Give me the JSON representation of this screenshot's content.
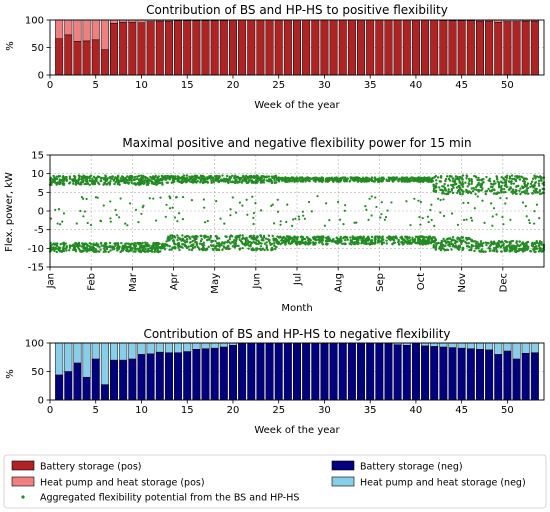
{
  "chart_data": [
    {
      "type": "bar",
      "stacked": true,
      "title": "Contribution of BS and HP-HS to positive flexibility",
      "xlabel": "Week of the year",
      "ylabel": "%",
      "xlim": [
        0,
        54
      ],
      "ylim": [
        0,
        100
      ],
      "xticks": [
        "0",
        "5",
        "10",
        "15",
        "20",
        "25",
        "30",
        "35",
        "40",
        "45",
        "50"
      ],
      "yticks": [
        "0",
        "50",
        "100"
      ],
      "grid": true,
      "categories": [
        1,
        2,
        3,
        4,
        5,
        6,
        7,
        8,
        9,
        10,
        11,
        12,
        13,
        14,
        15,
        16,
        17,
        18,
        19,
        20,
        21,
        22,
        23,
        24,
        25,
        26,
        27,
        28,
        29,
        30,
        31,
        32,
        33,
        34,
        35,
        36,
        37,
        38,
        39,
        40,
        41,
        42,
        43,
        44,
        45,
        46,
        47,
        48,
        49,
        50,
        51,
        52,
        53
      ],
      "series": [
        {
          "name": "Battery storage (pos)",
          "color": "#b22222",
          "values": [
            66,
            73,
            61,
            62,
            64,
            46,
            94,
            96,
            96,
            95,
            97,
            98,
            98,
            99,
            99,
            99,
            99,
            99,
            99,
            100,
            100,
            100,
            100,
            100,
            100,
            100,
            100,
            100,
            100,
            100,
            100,
            100,
            100,
            100,
            100,
            100,
            100,
            100,
            100,
            100,
            100,
            100,
            99,
            99,
            99,
            99,
            98,
            98,
            96,
            97,
            97,
            98,
            98
          ]
        },
        {
          "name": "Heat pump and heat storage (pos)",
          "color": "#f08080",
          "values": [
            34,
            27,
            39,
            38,
            36,
            54,
            6,
            4,
            4,
            5,
            3,
            2,
            2,
            1,
            1,
            1,
            1,
            1,
            1,
            0,
            0,
            0,
            0,
            0,
            0,
            0,
            0,
            0,
            0,
            0,
            0,
            0,
            0,
            0,
            0,
            0,
            0,
            0,
            0,
            0,
            0,
            0,
            1,
            1,
            1,
            1,
            2,
            2,
            4,
            3,
            3,
            2,
            2
          ]
        }
      ]
    },
    {
      "type": "scatter",
      "title": "Maximal positive and negative flexibility power for 15 min",
      "xlabel": "Month",
      "ylabel": "Flex. power, kW",
      "ylim": [
        -15,
        15
      ],
      "yticks": [
        "15",
        "10",
        "5",
        "0",
        "-5",
        "-10",
        "-15"
      ],
      "xticks": [
        "Jan",
        "Feb",
        "Mar",
        "Apr",
        "May",
        "Jun",
        "Jul",
        "Aug",
        "Sep",
        "Oct",
        "Nov",
        "Dec"
      ],
      "grid": true,
      "series": [
        {
          "name": "Aggregated flexibility potential from the BS and HP-HS",
          "color": "#228b22",
          "bands": [
            {
              "months": [
                0,
                2.8
              ],
              "pos": [
                7,
                9.5
              ],
              "neg": [
                -11,
                -8.5
              ]
            },
            {
              "months": [
                2.8,
                5.5
              ],
              "pos": [
                7.5,
                9.5
              ],
              "neg": [
                -10.5,
                -6.5
              ]
            },
            {
              "months": [
                5.5,
                9.3
              ],
              "pos": [
                7.8,
                9.0
              ],
              "neg": [
                -9.0,
                -6.8
              ]
            },
            {
              "months": [
                9.3,
                10.3
              ],
              "pos": [
                4.5,
                9.5
              ],
              "neg": [
                -10.5,
                -7
              ]
            },
            {
              "months": [
                10.3,
                12
              ],
              "pos": [
                4.5,
                9.5
              ],
              "neg": [
                -11,
                -8
              ]
            }
          ]
        }
      ]
    },
    {
      "type": "bar",
      "stacked": true,
      "title": "Contribution of BS and HP-HS to negative flexibility",
      "xlabel": "Week of the year",
      "ylabel": "%",
      "xlim": [
        0,
        54
      ],
      "ylim": [
        0,
        100
      ],
      "xticks": [
        "0",
        "5",
        "10",
        "15",
        "20",
        "25",
        "30",
        "35",
        "40",
        "45",
        "50"
      ],
      "yticks": [
        "0",
        "50",
        "100"
      ],
      "grid": true,
      "categories": [
        1,
        2,
        3,
        4,
        5,
        6,
        7,
        8,
        9,
        10,
        11,
        12,
        13,
        14,
        15,
        16,
        17,
        18,
        19,
        20,
        21,
        22,
        23,
        24,
        25,
        26,
        27,
        28,
        29,
        30,
        31,
        32,
        33,
        34,
        35,
        36,
        37,
        38,
        39,
        40,
        41,
        42,
        43,
        44,
        45,
        46,
        47,
        48,
        49,
        50,
        51,
        52,
        53
      ],
      "series": [
        {
          "name": "Battery storage (neg)",
          "color": "#000080",
          "values": [
            44,
            50,
            65,
            40,
            72,
            27,
            70,
            70,
            72,
            80,
            81,
            84,
            83,
            83,
            85,
            89,
            90,
            91,
            93,
            96,
            99,
            100,
            100,
            100,
            100,
            100,
            100,
            99,
            100,
            99,
            100,
            100,
            100,
            100,
            100,
            100,
            99,
            97,
            96,
            100,
            95,
            94,
            93,
            92,
            91,
            90,
            89,
            88,
            80,
            86,
            72,
            82,
            83
          ]
        },
        {
          "name": "Heat pump and heat storage (neg)",
          "color": "#87ceeb",
          "values": [
            56,
            50,
            35,
            60,
            28,
            73,
            30,
            30,
            28,
            20,
            19,
            16,
            17,
            17,
            15,
            11,
            10,
            9,
            7,
            4,
            1,
            0,
            0,
            0,
            0,
            0,
            0,
            1,
            0,
            1,
            0,
            0,
            0,
            0,
            0,
            0,
            1,
            3,
            4,
            0,
            5,
            6,
            7,
            8,
            9,
            10,
            11,
            12,
            20,
            14,
            28,
            18,
            17
          ]
        }
      ]
    }
  ],
  "legend": {
    "items": [
      {
        "label": "Battery storage (pos)",
        "color": "#b22222",
        "kind": "box"
      },
      {
        "label": "Battery storage (neg)",
        "color": "#000080",
        "kind": "box"
      },
      {
        "label": "Heat pump and heat storage (pos)",
        "color": "#f08080",
        "kind": "box"
      },
      {
        "label": "Heat pump and heat storage (neg)",
        "color": "#87ceeb",
        "kind": "box"
      },
      {
        "label": "Aggregated flexibility potential from the BS and HP-HS",
        "color": "#228b22",
        "kind": "dot"
      }
    ]
  }
}
